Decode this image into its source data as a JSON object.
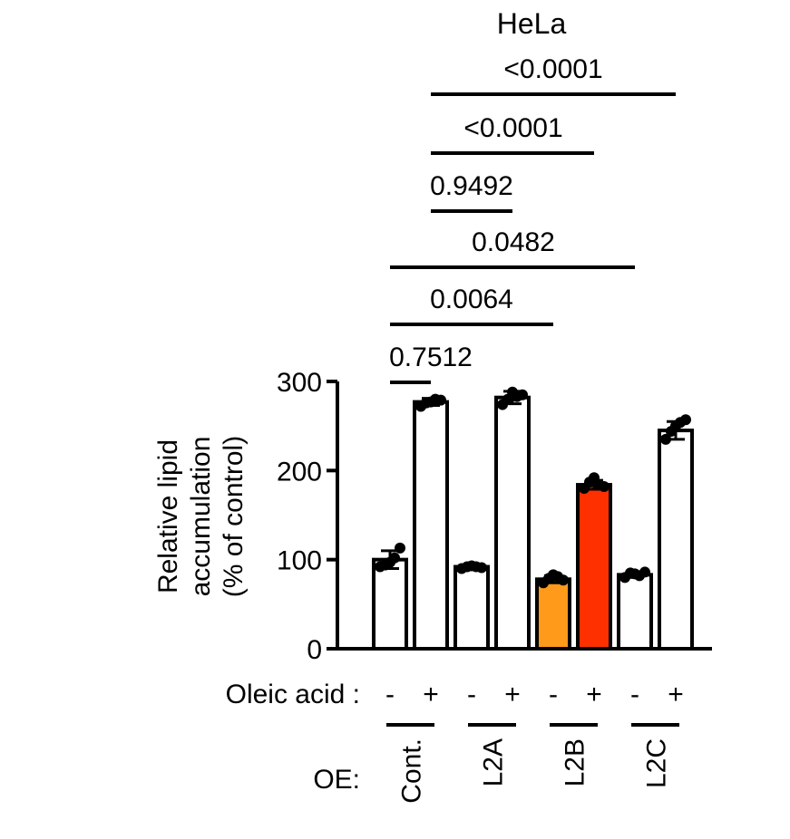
{
  "chart_data": {
    "type": "bar",
    "title": "HeLa",
    "ylabel_lines": [
      "Relative lipid",
      "accumulation",
      "(% of control)"
    ],
    "ylim": [
      0,
      300
    ],
    "yticks": [
      "0",
      "100",
      "200",
      "300"
    ],
    "row_labels": {
      "oleic_acid": "Oleic acid :",
      "oe": "OE:"
    },
    "groups": [
      "Cont.",
      "L2A",
      "L2B",
      "L2C"
    ],
    "bars": [
      {
        "group": "Cont.",
        "oleic_acid": "-",
        "value": 100,
        "error": 10,
        "color": "#ffffff",
        "points": [
          92,
          94,
          97,
          102,
          113
        ]
      },
      {
        "group": "Cont.",
        "oleic_acid": "+",
        "value": 277,
        "error": 4,
        "color": "#ffffff",
        "points": [
          272,
          276,
          277,
          280,
          279
        ]
      },
      {
        "group": "L2A",
        "oleic_acid": "-",
        "value": 92,
        "error": 2,
        "color": "#ffffff",
        "points": [
          90,
          92,
          93,
          92,
          91
        ]
      },
      {
        "group": "L2A",
        "oleic_acid": "+",
        "value": 282,
        "error": 7,
        "color": "#ffffff",
        "points": [
          274,
          280,
          288,
          283,
          285
        ]
      },
      {
        "group": "L2B",
        "oleic_acid": "-",
        "value": 78,
        "error": 4,
        "color": "#ff9a1a",
        "points": [
          74,
          79,
          83,
          81,
          77
        ]
      },
      {
        "group": "L2B",
        "oleic_acid": "+",
        "value": 184,
        "error": 5,
        "color": "#ff3000",
        "points": [
          180,
          187,
          192,
          184,
          182
        ]
      },
      {
        "group": "L2C",
        "oleic_acid": "-",
        "value": 83,
        "error": 3,
        "color": "#ffffff",
        "points": [
          80,
          85,
          84,
          82,
          86
        ]
      },
      {
        "group": "L2C",
        "oleic_acid": "+",
        "value": 245,
        "error": 10,
        "color": "#ffffff",
        "points": [
          235,
          244,
          250,
          254,
          257
        ]
      }
    ],
    "comparisons": [
      {
        "from_bar": 0,
        "to_bar": 1,
        "p": "0.7512"
      },
      {
        "from_bar": 0,
        "to_bar": 4,
        "p": "0.0064"
      },
      {
        "from_bar": 0,
        "to_bar": 6,
        "p": "0.0482"
      },
      {
        "from_bar": 1,
        "to_bar": 3,
        "p": "0.9492"
      },
      {
        "from_bar": 1,
        "to_bar": 5,
        "p": "<0.0001"
      },
      {
        "from_bar": 1,
        "to_bar": 7,
        "p": "<0.0001"
      }
    ]
  }
}
